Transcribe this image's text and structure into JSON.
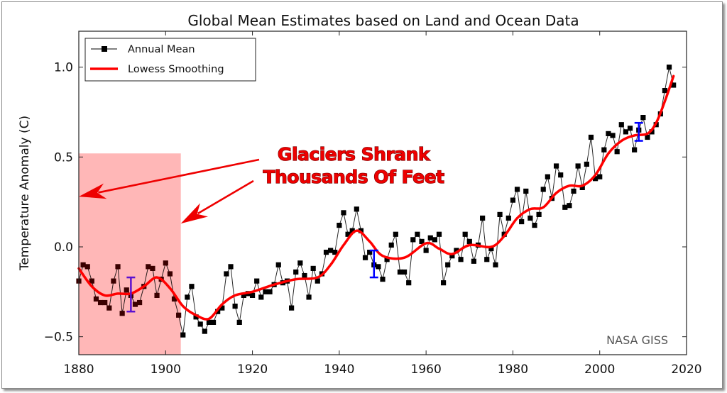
{
  "chart_data": {
    "type": "line",
    "title": "Global Mean Estimates based on Land and Ocean Data",
    "xlabel": "",
    "ylabel": "Temperature Anomaly (C)",
    "xlim": [
      1880,
      2020
    ],
    "ylim": [
      -0.6,
      1.2
    ],
    "xticks": [
      1880,
      1900,
      1920,
      1940,
      1960,
      1980,
      2000,
      2020
    ],
    "yticks": [
      -0.5,
      0.0,
      0.5,
      1.0
    ],
    "ytick_labels": [
      "−0.5",
      "0.0",
      "0.5",
      "1.0"
    ],
    "grid": false,
    "legend": {
      "placement": "top-left",
      "entries": [
        "Annual Mean",
        "Lowess Smoothing"
      ]
    },
    "colors": {
      "annual": "#000000",
      "lowess": "#ff0000",
      "error_bar": "#0000ff",
      "highlight": "#ffb3b3",
      "annotation": "#ee0000"
    },
    "series": [
      {
        "name": "Annual Mean",
        "style": "line-with-square-markers",
        "x": [
          1880,
          1881,
          1882,
          1883,
          1884,
          1885,
          1886,
          1887,
          1888,
          1889,
          1890,
          1891,
          1892,
          1893,
          1894,
          1895,
          1896,
          1897,
          1898,
          1899,
          1900,
          1901,
          1902,
          1903,
          1904,
          1905,
          1906,
          1907,
          1908,
          1909,
          1910,
          1911,
          1912,
          1913,
          1914,
          1915,
          1916,
          1917,
          1918,
          1919,
          1920,
          1921,
          1922,
          1923,
          1924,
          1925,
          1926,
          1927,
          1928,
          1929,
          1930,
          1931,
          1932,
          1933,
          1934,
          1935,
          1936,
          1937,
          1938,
          1939,
          1940,
          1941,
          1942,
          1943,
          1944,
          1945,
          1946,
          1947,
          1948,
          1949,
          1950,
          1951,
          1952,
          1953,
          1954,
          1955,
          1956,
          1957,
          1958,
          1959,
          1960,
          1961,
          1962,
          1963,
          1964,
          1965,
          1966,
          1967,
          1968,
          1969,
          1970,
          1971,
          1972,
          1973,
          1974,
          1975,
          1976,
          1977,
          1978,
          1979,
          1980,
          1981,
          1982,
          1983,
          1984,
          1985,
          1986,
          1987,
          1988,
          1989,
          1990,
          1991,
          1992,
          1993,
          1994,
          1995,
          1996,
          1997,
          1998,
          1999,
          2000,
          2001,
          2002,
          2003,
          2004,
          2005,
          2006,
          2007,
          2008,
          2009,
          2010,
          2011,
          2012,
          2013,
          2014,
          2015,
          2016,
          2017
        ],
        "y": [
          -0.19,
          -0.1,
          -0.11,
          -0.19,
          -0.29,
          -0.31,
          -0.31,
          -0.34,
          -0.19,
          -0.11,
          -0.37,
          -0.24,
          -0.27,
          -0.32,
          -0.31,
          -0.22,
          -0.11,
          -0.12,
          -0.27,
          -0.18,
          -0.09,
          -0.15,
          -0.29,
          -0.38,
          -0.49,
          -0.28,
          -0.22,
          -0.39,
          -0.43,
          -0.47,
          -0.42,
          -0.42,
          -0.36,
          -0.34,
          -0.15,
          -0.11,
          -0.33,
          -0.42,
          -0.27,
          -0.26,
          -0.27,
          -0.19,
          -0.28,
          -0.25,
          -0.25,
          -0.21,
          -0.1,
          -0.2,
          -0.19,
          -0.34,
          -0.14,
          -0.09,
          -0.16,
          -0.28,
          -0.12,
          -0.19,
          -0.15,
          -0.03,
          -0.02,
          -0.03,
          0.12,
          0.19,
          0.07,
          0.09,
          0.21,
          0.09,
          -0.06,
          -0.03,
          -0.1,
          -0.11,
          -0.18,
          -0.07,
          0.01,
          0.07,
          -0.14,
          -0.14,
          -0.2,
          0.04,
          0.07,
          0.03,
          -0.02,
          0.05,
          0.04,
          0.07,
          -0.2,
          -0.1,
          -0.05,
          -0.02,
          -0.07,
          0.07,
          0.03,
          -0.08,
          0.01,
          0.16,
          -0.07,
          -0.01,
          -0.1,
          0.18,
          0.07,
          0.16,
          0.26,
          0.32,
          0.14,
          0.31,
          0.16,
          0.12,
          0.18,
          0.32,
          0.39,
          0.27,
          0.45,
          0.4,
          0.22,
          0.23,
          0.31,
          0.45,
          0.33,
          0.46,
          0.61,
          0.38,
          0.39,
          0.54,
          0.63,
          0.62,
          0.53,
          0.68,
          0.64,
          0.66,
          0.54,
          0.65,
          0.72,
          0.61,
          0.64,
          0.68,
          0.74,
          0.87,
          1.0,
          0.9
        ]
      },
      {
        "name": "Lowess Smoothing",
        "style": "line",
        "x": [
          1880,
          1883,
          1886,
          1889,
          1892,
          1895,
          1898,
          1901,
          1904,
          1907,
          1910,
          1913,
          1916,
          1920,
          1925,
          1930,
          1935,
          1938,
          1941,
          1944,
          1947,
          1950,
          1955,
          1960,
          1963,
          1966,
          1970,
          1975,
          1978,
          1981,
          1984,
          1987,
          1990,
          1993,
          1996,
          1999,
          2002,
          2005,
          2008,
          2011,
          2013,
          2015,
          2017
        ],
        "y": [
          -0.12,
          -0.22,
          -0.27,
          -0.26,
          -0.26,
          -0.22,
          -0.17,
          -0.23,
          -0.33,
          -0.38,
          -0.4,
          -0.32,
          -0.27,
          -0.25,
          -0.21,
          -0.18,
          -0.17,
          -0.1,
          0.01,
          0.09,
          0.03,
          -0.05,
          -0.06,
          0.02,
          -0.01,
          -0.04,
          0.01,
          0.0,
          0.06,
          0.16,
          0.21,
          0.22,
          0.3,
          0.34,
          0.34,
          0.4,
          0.52,
          0.59,
          0.62,
          0.63,
          0.69,
          0.81,
          0.95
        ]
      }
    ],
    "error_bars": [
      {
        "x": 1892,
        "y": -0.27,
        "low": -0.36,
        "high": -0.17
      },
      {
        "x": 1948,
        "y": -0.1,
        "low": -0.17,
        "high": -0.02
      },
      {
        "x": 2009,
        "y": 0.64,
        "low": 0.59,
        "high": 0.69
      }
    ],
    "highlight_region": {
      "x": [
        1880,
        1903.5
      ],
      "y": [
        -0.6,
        0.52
      ],
      "label": "pink shaded period"
    },
    "annotations": {
      "line1": "Glaciers Shrank",
      "line2": "Thousands Of Feet",
      "arrow_targets": [
        {
          "x": 1880,
          "y": 0.28
        },
        {
          "x": 1903.5,
          "y": 0.13
        }
      ]
    },
    "source_label": "NASA GISS"
  }
}
